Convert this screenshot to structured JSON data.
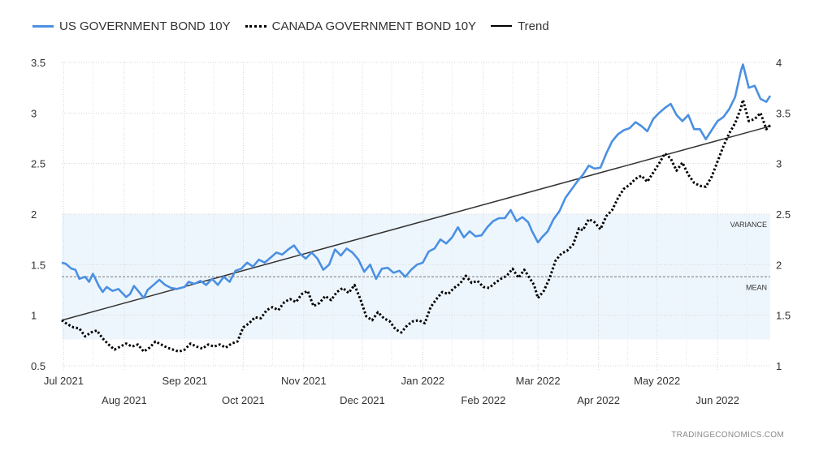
{
  "legend": {
    "items": [
      {
        "label": "US GOVERNMENT BOND 10Y",
        "color": "#4a90e2",
        "style": "solid"
      },
      {
        "label": "CANADA GOVERNMENT BOND 10Y",
        "color": "#000000",
        "style": "dotted"
      },
      {
        "label": "Trend",
        "color": "#000000",
        "style": "solid"
      }
    ]
  },
  "credit": "TRADINGECONOMICS.COM",
  "chart_data": {
    "type": "line",
    "x_axis": {
      "type": "date",
      "range": [
        "2021-06-30",
        "2022-06-28"
      ],
      "ticks_upper": [
        {
          "date": "2021-07-01",
          "label": "Jul 2021"
        },
        {
          "date": "2021-09-01",
          "label": "Sep 2021"
        },
        {
          "date": "2021-11-01",
          "label": "Nov 2021"
        },
        {
          "date": "2022-01-01",
          "label": "Jan 2022"
        },
        {
          "date": "2022-03-01",
          "label": "Mar 2022"
        },
        {
          "date": "2022-05-01",
          "label": "May 2022"
        }
      ],
      "ticks_lower": [
        {
          "date": "2021-08-01",
          "label": "Aug 2021"
        },
        {
          "date": "2021-10-01",
          "label": "Oct 2021"
        },
        {
          "date": "2021-12-01",
          "label": "Dec 2021"
        },
        {
          "date": "2022-02-01",
          "label": "Feb 2022"
        },
        {
          "date": "2022-04-01",
          "label": "Apr 2022"
        },
        {
          "date": "2022-06-01",
          "label": "Jun 2022"
        }
      ],
      "minor_gridlines_at_month_midpoints": true
    },
    "y_left": {
      "min": 0.5,
      "max": 3.5,
      "ticks": [
        "0.5",
        "1",
        "1.5",
        "2",
        "2.5",
        "3",
        "3.5"
      ]
    },
    "y_right": {
      "min": 1,
      "max": 4,
      "ticks": [
        "1",
        "1.5",
        "2",
        "2.5",
        "3",
        "3.5",
        "4"
      ]
    },
    "variance_band": {
      "axis": "left",
      "from": 0.76,
      "to": 2.0,
      "label": "VARIANCE",
      "color": "#eef6fd"
    },
    "mean_line": {
      "axis": "left",
      "value": 1.38,
      "label": "MEAN",
      "color": "#777777"
    },
    "trend": {
      "axis": "left",
      "start": [
        "2021-06-30",
        0.95
      ],
      "end": [
        "2022-06-28",
        2.87
      ],
      "color": "#333333"
    },
    "series": [
      {
        "name": "US GOVERNMENT BOND 10Y",
        "axis": "left",
        "color": "#4a90e2",
        "style": "solid",
        "points": [
          [
            "2021-06-30",
            1.52
          ],
          [
            "2021-07-02",
            1.51
          ],
          [
            "2021-07-05",
            1.46
          ],
          [
            "2021-07-07",
            1.45
          ],
          [
            "2021-07-09",
            1.36
          ],
          [
            "2021-07-12",
            1.38
          ],
          [
            "2021-07-14",
            1.33
          ],
          [
            "2021-07-16",
            1.41
          ],
          [
            "2021-07-19",
            1.29
          ],
          [
            "2021-07-21",
            1.23
          ],
          [
            "2021-07-23",
            1.28
          ],
          [
            "2021-07-26",
            1.24
          ],
          [
            "2021-07-29",
            1.26
          ],
          [
            "2021-08-02",
            1.18
          ],
          [
            "2021-08-04",
            1.21
          ],
          [
            "2021-08-06",
            1.29
          ],
          [
            "2021-08-09",
            1.22
          ],
          [
            "2021-08-11",
            1.17
          ],
          [
            "2021-08-13",
            1.25
          ],
          [
            "2021-08-16",
            1.3
          ],
          [
            "2021-08-19",
            1.35
          ],
          [
            "2021-08-22",
            1.3
          ],
          [
            "2021-08-25",
            1.27
          ],
          [
            "2021-08-28",
            1.26
          ],
          [
            "2021-09-01",
            1.28
          ],
          [
            "2021-09-03",
            1.33
          ],
          [
            "2021-09-06",
            1.31
          ],
          [
            "2021-09-09",
            1.34
          ],
          [
            "2021-09-12",
            1.3
          ],
          [
            "2021-09-15",
            1.36
          ],
          [
            "2021-09-18",
            1.3
          ],
          [
            "2021-09-21",
            1.38
          ],
          [
            "2021-09-24",
            1.33
          ],
          [
            "2021-09-27",
            1.44
          ],
          [
            "2021-09-30",
            1.46
          ],
          [
            "2021-10-03",
            1.52
          ],
          [
            "2021-10-06",
            1.48
          ],
          [
            "2021-10-09",
            1.55
          ],
          [
            "2021-10-12",
            1.52
          ],
          [
            "2021-10-15",
            1.57
          ],
          [
            "2021-10-18",
            1.62
          ],
          [
            "2021-10-21",
            1.6
          ],
          [
            "2021-10-24",
            1.65
          ],
          [
            "2021-10-27",
            1.69
          ],
          [
            "2021-10-30",
            1.61
          ],
          [
            "2021-11-02",
            1.56
          ],
          [
            "2021-11-05",
            1.62
          ],
          [
            "2021-11-08",
            1.56
          ],
          [
            "2021-11-11",
            1.45
          ],
          [
            "2021-11-14",
            1.5
          ],
          [
            "2021-11-17",
            1.65
          ],
          [
            "2021-11-20",
            1.59
          ],
          [
            "2021-11-23",
            1.66
          ],
          [
            "2021-11-26",
            1.62
          ],
          [
            "2021-11-29",
            1.55
          ],
          [
            "2021-12-02",
            1.43
          ],
          [
            "2021-12-05",
            1.5
          ],
          [
            "2021-12-08",
            1.36
          ],
          [
            "2021-12-11",
            1.46
          ],
          [
            "2021-12-14",
            1.47
          ],
          [
            "2021-12-17",
            1.42
          ],
          [
            "2021-12-20",
            1.44
          ],
          [
            "2021-12-23",
            1.38
          ],
          [
            "2021-12-26",
            1.45
          ],
          [
            "2021-12-29",
            1.5
          ],
          [
            "2022-01-01",
            1.52
          ],
          [
            "2022-01-04",
            1.63
          ],
          [
            "2022-01-07",
            1.66
          ],
          [
            "2022-01-10",
            1.75
          ],
          [
            "2022-01-13",
            1.71
          ],
          [
            "2022-01-16",
            1.77
          ],
          [
            "2022-01-19",
            1.87
          ],
          [
            "2022-01-22",
            1.77
          ],
          [
            "2022-01-25",
            1.83
          ],
          [
            "2022-01-28",
            1.78
          ],
          [
            "2022-01-31",
            1.79
          ],
          [
            "2022-02-03",
            1.87
          ],
          [
            "2022-02-06",
            1.93
          ],
          [
            "2022-02-09",
            1.96
          ],
          [
            "2022-02-12",
            1.96
          ],
          [
            "2022-02-15",
            2.04
          ],
          [
            "2022-02-18",
            1.93
          ],
          [
            "2022-02-21",
            1.97
          ],
          [
            "2022-02-24",
            1.92
          ],
          [
            "2022-02-26",
            1.83
          ],
          [
            "2022-03-01",
            1.72
          ],
          [
            "2022-03-03",
            1.77
          ],
          [
            "2022-03-06",
            1.83
          ],
          [
            "2022-03-09",
            1.95
          ],
          [
            "2022-03-12",
            2.03
          ],
          [
            "2022-03-15",
            2.16
          ],
          [
            "2022-03-18",
            2.24
          ],
          [
            "2022-03-21",
            2.32
          ],
          [
            "2022-03-24",
            2.39
          ],
          [
            "2022-03-27",
            2.48
          ],
          [
            "2022-03-30",
            2.45
          ],
          [
            "2022-04-02",
            2.46
          ],
          [
            "2022-04-05",
            2.6
          ],
          [
            "2022-04-08",
            2.72
          ],
          [
            "2022-04-11",
            2.79
          ],
          [
            "2022-04-14",
            2.83
          ],
          [
            "2022-04-17",
            2.85
          ],
          [
            "2022-04-20",
            2.91
          ],
          [
            "2022-04-23",
            2.87
          ],
          [
            "2022-04-26",
            2.82
          ],
          [
            "2022-04-29",
            2.94
          ],
          [
            "2022-05-02",
            3.0
          ],
          [
            "2022-05-05",
            3.05
          ],
          [
            "2022-05-08",
            3.09
          ],
          [
            "2022-05-11",
            2.98
          ],
          [
            "2022-05-14",
            2.92
          ],
          [
            "2022-05-17",
            2.98
          ],
          [
            "2022-05-20",
            2.84
          ],
          [
            "2022-05-23",
            2.84
          ],
          [
            "2022-05-26",
            2.74
          ],
          [
            "2022-05-29",
            2.83
          ],
          [
            "2022-06-01",
            2.92
          ],
          [
            "2022-06-04",
            2.96
          ],
          [
            "2022-06-07",
            3.04
          ],
          [
            "2022-06-10",
            3.16
          ],
          [
            "2022-06-13",
            3.42
          ],
          [
            "2022-06-14",
            3.48
          ],
          [
            "2022-06-17",
            3.25
          ],
          [
            "2022-06-20",
            3.27
          ],
          [
            "2022-06-23",
            3.14
          ],
          [
            "2022-06-26",
            3.11
          ],
          [
            "2022-06-28",
            3.17
          ]
        ]
      },
      {
        "name": "CANADA GOVERNMENT BOND 10Y",
        "axis": "right",
        "color": "#000000",
        "style": "dotted",
        "points": [
          [
            "2021-06-30",
            1.45
          ],
          [
            "2021-07-03",
            1.41
          ],
          [
            "2021-07-06",
            1.38
          ],
          [
            "2021-07-09",
            1.37
          ],
          [
            "2021-07-12",
            1.29
          ],
          [
            "2021-07-15",
            1.33
          ],
          [
            "2021-07-18",
            1.35
          ],
          [
            "2021-07-21",
            1.27
          ],
          [
            "2021-07-24",
            1.21
          ],
          [
            "2021-07-27",
            1.16
          ],
          [
            "2021-07-30",
            1.19
          ],
          [
            "2021-08-02",
            1.22
          ],
          [
            "2021-08-05",
            1.19
          ],
          [
            "2021-08-08",
            1.21
          ],
          [
            "2021-08-11",
            1.14
          ],
          [
            "2021-08-14",
            1.18
          ],
          [
            "2021-08-17",
            1.24
          ],
          [
            "2021-08-20",
            1.21
          ],
          [
            "2021-08-23",
            1.18
          ],
          [
            "2021-08-26",
            1.16
          ],
          [
            "2021-08-29",
            1.14
          ],
          [
            "2021-09-01",
            1.16
          ],
          [
            "2021-09-04",
            1.22
          ],
          [
            "2021-09-07",
            1.19
          ],
          [
            "2021-09-10",
            1.17
          ],
          [
            "2021-09-13",
            1.21
          ],
          [
            "2021-09-16",
            1.19
          ],
          [
            "2021-09-19",
            1.21
          ],
          [
            "2021-09-22",
            1.18
          ],
          [
            "2021-09-25",
            1.22
          ],
          [
            "2021-09-28",
            1.24
          ],
          [
            "2021-10-01",
            1.38
          ],
          [
            "2021-10-04",
            1.42
          ],
          [
            "2021-10-07",
            1.48
          ],
          [
            "2021-10-10",
            1.47
          ],
          [
            "2021-10-13",
            1.55
          ],
          [
            "2021-10-16",
            1.58
          ],
          [
            "2021-10-19",
            1.55
          ],
          [
            "2021-10-22",
            1.63
          ],
          [
            "2021-10-25",
            1.66
          ],
          [
            "2021-10-28",
            1.63
          ],
          [
            "2021-10-31",
            1.71
          ],
          [
            "2021-11-03",
            1.74
          ],
          [
            "2021-11-06",
            1.59
          ],
          [
            "2021-11-09",
            1.62
          ],
          [
            "2021-11-12",
            1.69
          ],
          [
            "2021-11-15",
            1.65
          ],
          [
            "2021-11-18",
            1.73
          ],
          [
            "2021-11-21",
            1.77
          ],
          [
            "2021-11-24",
            1.72
          ],
          [
            "2021-11-27",
            1.8
          ],
          [
            "2021-11-30",
            1.66
          ],
          [
            "2021-12-03",
            1.49
          ],
          [
            "2021-12-06",
            1.45
          ],
          [
            "2021-12-09",
            1.53
          ],
          [
            "2021-12-12",
            1.47
          ],
          [
            "2021-12-15",
            1.44
          ],
          [
            "2021-12-18",
            1.36
          ],
          [
            "2021-12-21",
            1.33
          ],
          [
            "2021-12-24",
            1.4
          ],
          [
            "2021-12-27",
            1.44
          ],
          [
            "2021-12-30",
            1.45
          ],
          [
            "2022-01-02",
            1.42
          ],
          [
            "2022-01-05",
            1.58
          ],
          [
            "2022-01-08",
            1.66
          ],
          [
            "2022-01-11",
            1.73
          ],
          [
            "2022-01-14",
            1.71
          ],
          [
            "2022-01-17",
            1.77
          ],
          [
            "2022-01-20",
            1.81
          ],
          [
            "2022-01-23",
            1.89
          ],
          [
            "2022-01-26",
            1.82
          ],
          [
            "2022-01-29",
            1.84
          ],
          [
            "2022-02-01",
            1.78
          ],
          [
            "2022-02-04",
            1.77
          ],
          [
            "2022-02-07",
            1.82
          ],
          [
            "2022-02-10",
            1.86
          ],
          [
            "2022-02-13",
            1.89
          ],
          [
            "2022-02-16",
            1.96
          ],
          [
            "2022-02-19",
            1.87
          ],
          [
            "2022-02-22",
            1.95
          ],
          [
            "2022-02-24",
            1.89
          ],
          [
            "2022-02-27",
            1.8
          ],
          [
            "2022-03-01",
            1.67
          ],
          [
            "2022-03-04",
            1.74
          ],
          [
            "2022-03-07",
            1.87
          ],
          [
            "2022-03-10",
            2.04
          ],
          [
            "2022-03-13",
            2.11
          ],
          [
            "2022-03-16",
            2.14
          ],
          [
            "2022-03-19",
            2.2
          ],
          [
            "2022-03-22",
            2.36
          ],
          [
            "2022-03-24",
            2.34
          ],
          [
            "2022-03-27",
            2.45
          ],
          [
            "2022-03-30",
            2.42
          ],
          [
            "2022-04-02",
            2.35
          ],
          [
            "2022-04-05",
            2.48
          ],
          [
            "2022-04-08",
            2.54
          ],
          [
            "2022-04-11",
            2.66
          ],
          [
            "2022-04-14",
            2.75
          ],
          [
            "2022-04-17",
            2.79
          ],
          [
            "2022-04-20",
            2.85
          ],
          [
            "2022-04-23",
            2.88
          ],
          [
            "2022-04-26",
            2.82
          ],
          [
            "2022-04-29",
            2.91
          ],
          [
            "2022-05-02",
            3.0
          ],
          [
            "2022-05-05",
            3.1
          ],
          [
            "2022-05-08",
            3.05
          ],
          [
            "2022-05-11",
            2.93
          ],
          [
            "2022-05-14",
            3.01
          ],
          [
            "2022-05-17",
            2.89
          ],
          [
            "2022-05-20",
            2.81
          ],
          [
            "2022-05-23",
            2.78
          ],
          [
            "2022-05-26",
            2.77
          ],
          [
            "2022-05-29",
            2.87
          ],
          [
            "2022-06-01",
            3.02
          ],
          [
            "2022-06-04",
            3.17
          ],
          [
            "2022-06-07",
            3.3
          ],
          [
            "2022-06-10",
            3.4
          ],
          [
            "2022-06-13",
            3.55
          ],
          [
            "2022-06-14",
            3.63
          ],
          [
            "2022-06-17",
            3.42
          ],
          [
            "2022-06-20",
            3.44
          ],
          [
            "2022-06-23",
            3.5
          ],
          [
            "2022-06-26",
            3.34
          ],
          [
            "2022-06-28",
            3.38
          ]
        ]
      }
    ]
  }
}
